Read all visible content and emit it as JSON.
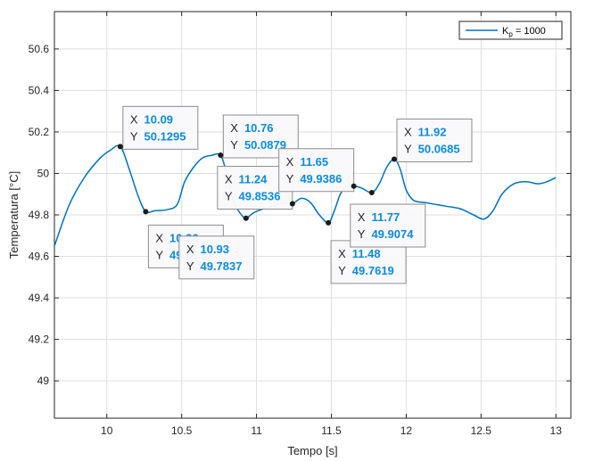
{
  "chart_data": {
    "type": "line",
    "xlabel": "Tempo [s]",
    "ylabel": "Temperatura [°C]",
    "xlim": [
      9.65,
      13.1
    ],
    "ylim": [
      48.82,
      50.78
    ],
    "xticks": [
      10,
      10.5,
      11,
      11.5,
      12,
      12.5,
      13
    ],
    "xtick_labels": [
      "10",
      "10.5",
      "11",
      "11.5",
      "12",
      "12.5",
      "13"
    ],
    "yticks": [
      49,
      49.2,
      49.4,
      49.6,
      49.8,
      50,
      50.2,
      50.4,
      50.6
    ],
    "ytick_labels": [
      "49",
      "49.2",
      "49.4",
      "49.6",
      "49.8",
      "50",
      "50.2",
      "50.4",
      "50.6"
    ],
    "grid": true,
    "legend_location": "top-right",
    "series": [
      {
        "name": "K_p = 1000",
        "color": "#0072bd",
        "x": [
          9.65,
          9.75,
          9.85,
          9.95,
          10.02,
          10.09,
          10.15,
          10.21,
          10.26,
          10.32,
          10.4,
          10.47,
          10.52,
          10.58,
          10.64,
          10.7,
          10.76,
          10.8,
          10.85,
          10.9,
          10.93,
          10.98,
          11.03,
          11.09,
          11.14,
          11.19,
          11.24,
          11.3,
          11.36,
          11.42,
          11.48,
          11.52,
          11.56,
          11.6,
          11.65,
          11.7,
          11.77,
          11.82,
          11.87,
          11.92,
          11.96,
          12.0,
          12.05,
          12.12,
          12.2,
          12.28,
          12.36,
          12.45,
          12.52,
          12.58,
          12.64,
          12.72,
          12.8,
          12.88,
          12.94,
          13.0
        ],
        "y": [
          49.65,
          49.85,
          49.98,
          50.07,
          50.11,
          50.1295,
          50.02,
          49.89,
          49.8154,
          49.82,
          49.825,
          49.85,
          49.96,
          50.03,
          50.075,
          50.087,
          50.0879,
          50.0,
          49.86,
          49.8,
          49.7837,
          49.81,
          49.825,
          49.84,
          49.85,
          49.856,
          49.8536,
          49.88,
          49.86,
          49.8,
          49.7619,
          49.82,
          49.9,
          49.935,
          49.9386,
          49.93,
          49.9074,
          49.95,
          50.03,
          50.0685,
          50.02,
          49.92,
          49.87,
          49.86,
          49.85,
          49.84,
          49.83,
          49.8,
          49.78,
          49.82,
          49.9,
          49.95,
          49.96,
          49.95,
          49.96,
          49.98
        ]
      }
    ],
    "datatips": [
      {
        "x_label": "X",
        "x_value": "10.09",
        "y_label": "Y",
        "y_value": "50.1295",
        "x": 10.09,
        "y": 50.1295
      },
      {
        "x_label": "X",
        "x_value": "10.26",
        "y_label": "Y",
        "y_value": "49.8154",
        "x": 10.26,
        "y": 49.8154
      },
      {
        "x_label": "X",
        "x_value": "10.76",
        "y_label": "Y",
        "y_value": "50.0879",
        "x": 10.76,
        "y": 50.0879
      },
      {
        "x_label": "X",
        "x_value": "10.93",
        "y_label": "Y",
        "y_value": "49.7837",
        "x": 10.93,
        "y": 49.7837
      },
      {
        "x_label": "X",
        "x_value": "11.24",
        "y_label": "Y",
        "y_value": "49.8536",
        "x": 11.24,
        "y": 49.8536
      },
      {
        "x_label": "X",
        "x_value": "11.65",
        "y_label": "Y",
        "y_value": "49.9386",
        "x": 11.65,
        "y": 49.9386
      },
      {
        "x_label": "X",
        "x_value": "11.48",
        "y_label": "Y",
        "y_value": "49.7619",
        "x": 11.48,
        "y": 49.7619
      },
      {
        "x_label": "X",
        "x_value": "11.92",
        "y_label": "Y",
        "y_value": "50.0685",
        "x": 11.92,
        "y": 50.0685
      },
      {
        "x_label": "X",
        "x_value": "11.77",
        "y_label": "Y",
        "y_value": "49.9074",
        "x": 11.77,
        "y": 49.9074
      }
    ]
  },
  "legend": {
    "symbol": "K",
    "subscript": "p",
    "value_text": " =  1000"
  }
}
